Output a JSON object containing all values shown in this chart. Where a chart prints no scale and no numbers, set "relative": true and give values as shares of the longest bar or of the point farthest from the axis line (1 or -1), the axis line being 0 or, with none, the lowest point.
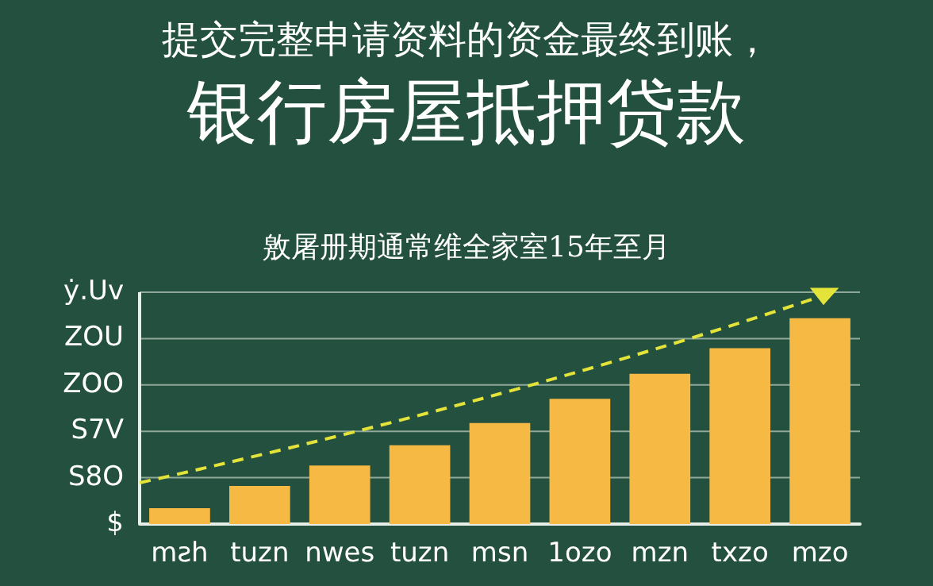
{
  "chart_data": {
    "type": "bar",
    "subtitle": "提交完整申请资料的资金最终到账，",
    "title": "银行房屋抵押贷款",
    "annotations": [
      "敫屠册期通常维全家室15年至月",
      "$",
      "S8O",
      "S7V",
      "ZOO",
      "ZOU",
      "ẏ.Uv"
    ],
    "categories": [
      "mƨh",
      "tuzn",
      "nwes",
      "tuzn",
      "msn",
      "1ozo",
      "mzn",
      "txzo",
      "mzo"
    ],
    "values": [
      0.077,
      0.185,
      0.284,
      0.383,
      0.491,
      0.608,
      0.73,
      0.854,
      1
    ],
    "color": "#f6b944",
    "relative": true,
    "grid": "y"
  }
}
